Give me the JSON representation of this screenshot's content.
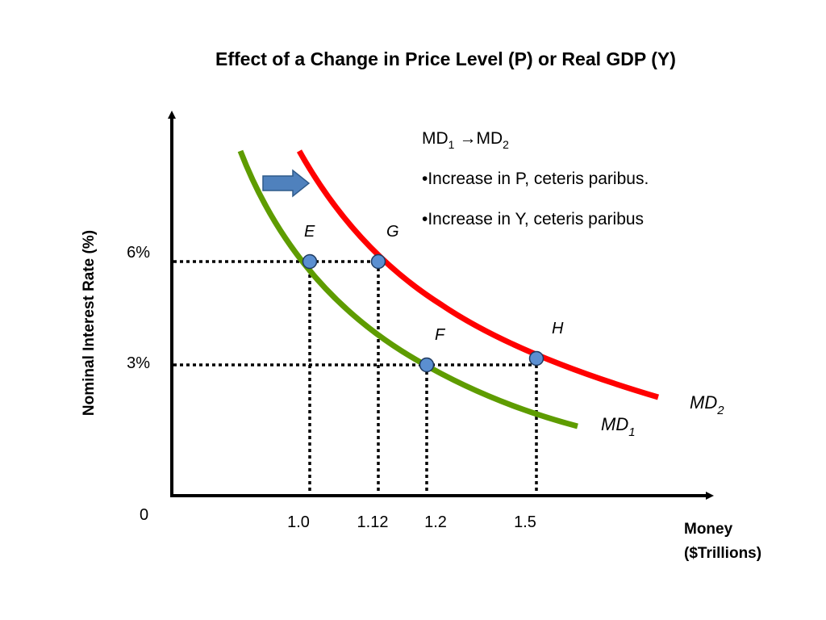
{
  "title": "Effect of a Change in Price Level (P) or Real GDP (Y)",
  "notes": {
    "shift_prefix": "MD",
    "shift_from_sub": "1",
    "shift_arrow": "→",
    "shift_to_prefix": "MD",
    "shift_to_sub": "2",
    "bullet1": "•Increase in P, ceteris paribus.",
    "bullet2": "•Increase in Y, ceteris paribus"
  },
  "colors": {
    "md1": "#5e9c00",
    "md2": "#ff0000",
    "point_fill": "#5b8fd1",
    "point_stroke": "#1f3a5f",
    "md2_label": "#0000cc",
    "shift_arrow": "#4f81bd"
  },
  "chart_data": {
    "type": "line",
    "xlabel_line1": "Money",
    "xlabel_line2": "($Trillions)",
    "ylabel": "Nominal Interest Rate (%)",
    "origin_label": "0",
    "x_ticks": [
      {
        "value": 1.0,
        "label": "1.0"
      },
      {
        "value": 1.12,
        "label": "1.12"
      },
      {
        "value": 1.2,
        "label": "1.2"
      },
      {
        "value": 1.5,
        "label": "1.5"
      }
    ],
    "y_ticks": [
      {
        "value": 6,
        "label": "6%"
      },
      {
        "value": 3,
        "label": "3%"
      }
    ],
    "series": [
      {
        "key": "md1",
        "name": "MD",
        "sub": "1"
      },
      {
        "key": "md2",
        "name": "MD",
        "sub": "2"
      }
    ],
    "points": [
      {
        "id": "E",
        "label": "E",
        "x": 1.0,
        "y": 6,
        "curve": "md1"
      },
      {
        "id": "G",
        "label": "G",
        "x": 1.12,
        "y": 6,
        "curve": "md2"
      },
      {
        "id": "F",
        "label": "F",
        "x": 1.2,
        "y": 3,
        "curve": "md1"
      },
      {
        "id": "H",
        "label": "H",
        "x": 1.5,
        "y": 3,
        "curve": "md2"
      }
    ],
    "grid": false
  }
}
